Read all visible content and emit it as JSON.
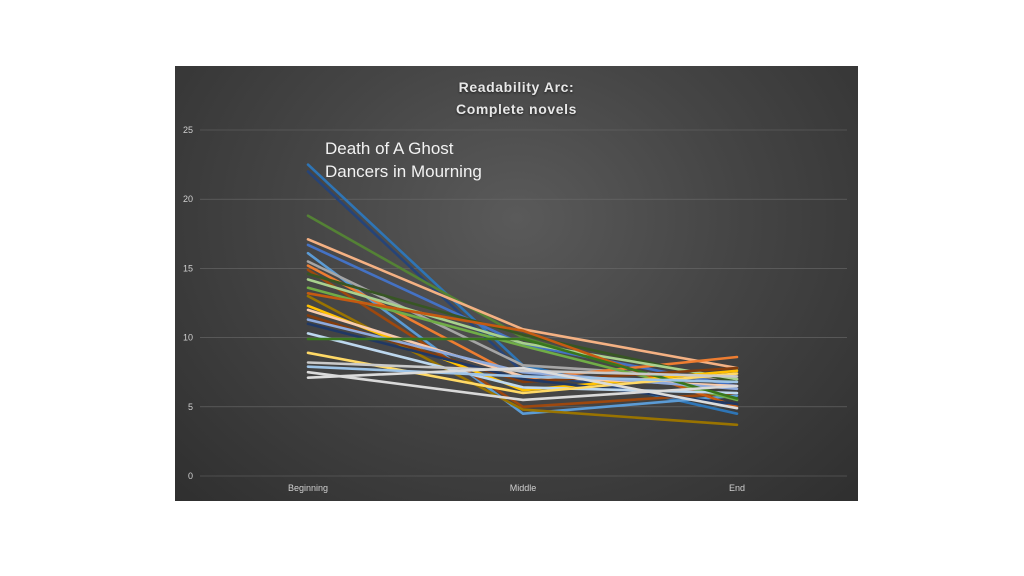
{
  "chart_data": {
    "type": "line",
    "title_lines": [
      "Readability Arc:",
      "Complete novels"
    ],
    "categories": [
      "Beginning",
      "Middle",
      "End"
    ],
    "ylim": [
      0,
      25
    ],
    "yticks": [
      0,
      5,
      10,
      15,
      20,
      25
    ],
    "grid": true,
    "annotations": [
      "Death of A Ghost",
      "Dancers in Mourning"
    ],
    "series": [
      {
        "values": [
          22.5,
          8.0,
          4.5
        ],
        "color": "#2e75b6"
      },
      {
        "values": [
          22.0,
          7.5,
          5.0
        ],
        "color": "#264478"
      },
      {
        "values": [
          18.8,
          10.0,
          5.5
        ],
        "color": "#548235"
      },
      {
        "values": [
          17.1,
          10.6,
          7.8
        ],
        "color": "#f4b183"
      },
      {
        "values": [
          16.7,
          9.5,
          6.5
        ],
        "color": "#4472c4"
      },
      {
        "values": [
          16.1,
          4.5,
          5.8
        ],
        "color": "#5b9bd5"
      },
      {
        "values": [
          15.5,
          8.0,
          7.0
        ],
        "color": "#a5a5a5"
      },
      {
        "values": [
          15.2,
          7.0,
          8.6
        ],
        "color": "#ed7d31"
      },
      {
        "values": [
          14.9,
          5.0,
          6.0
        ],
        "color": "#9e480e"
      },
      {
        "values": [
          14.6,
          10.2,
          6.8
        ],
        "color": "#375623"
      },
      {
        "values": [
          14.2,
          9.6,
          7.0
        ],
        "color": "#a9d18e"
      },
      {
        "values": [
          13.6,
          9.4,
          5.5
        ],
        "color": "#70ad47"
      },
      {
        "values": [
          13.2,
          10.5,
          5.0
        ],
        "color": "#c55a11"
      },
      {
        "values": [
          13.0,
          4.8,
          3.7
        ],
        "color": "#997300"
      },
      {
        "values": [
          12.3,
          6.2,
          7.6
        ],
        "color": "#ffc000"
      },
      {
        "values": [
          12.0,
          7.2,
          6.5
        ],
        "color": "#f8cbad"
      },
      {
        "values": [
          11.6,
          6.8,
          7.8
        ],
        "color": "#843c0c"
      },
      {
        "values": [
          11.3,
          7.5,
          6.3
        ],
        "color": "#8faadc"
      },
      {
        "values": [
          11.0,
          7.0,
          5.2
        ],
        "color": "#203864"
      },
      {
        "values": [
          10.3,
          6.4,
          6.0
        ],
        "color": "#bdd7ee"
      },
      {
        "values": [
          9.9,
          9.9,
          5.6
        ],
        "color": "#38761d"
      },
      {
        "values": [
          8.9,
          6.0,
          7.4
        ],
        "color": "#ffd966"
      },
      {
        "values": [
          8.2,
          7.6,
          7.2
        ],
        "color": "#c9c9c9"
      },
      {
        "values": [
          7.9,
          7.2,
          6.8
        ],
        "color": "#9dc3e6"
      },
      {
        "values": [
          7.5,
          5.5,
          6.5
        ],
        "color": "#d9d9d9"
      },
      {
        "values": [
          7.1,
          7.8,
          4.9
        ],
        "color": "#dbdbdb"
      }
    ]
  }
}
